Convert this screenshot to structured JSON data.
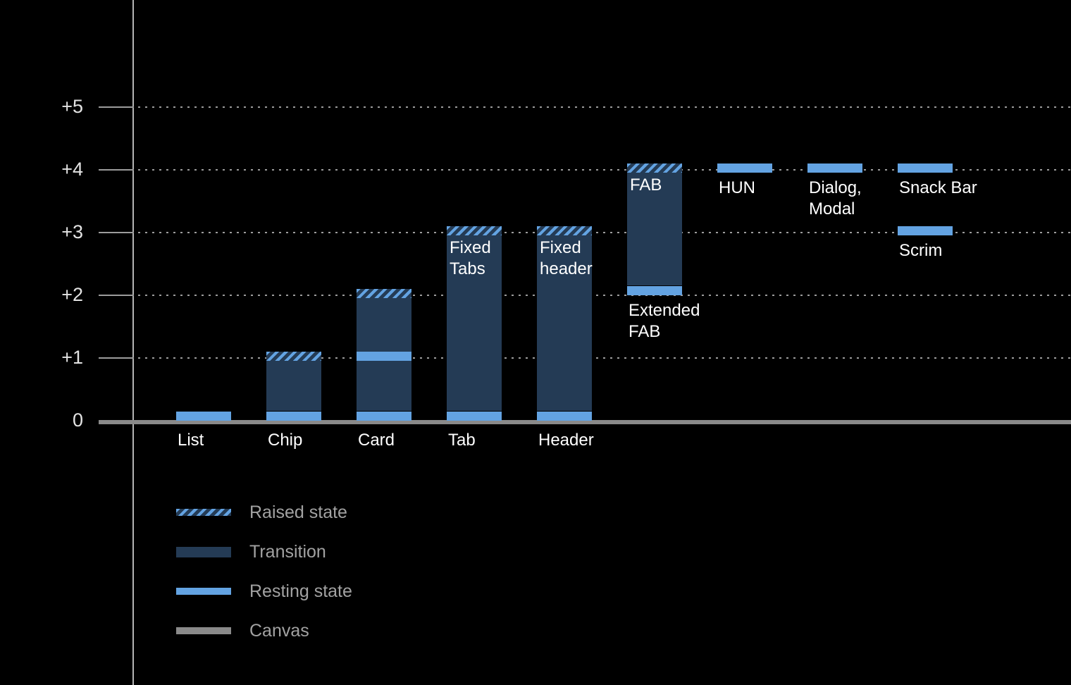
{
  "chart_data": {
    "type": "bar",
    "title": "",
    "xlabel": "",
    "ylabel": "",
    "ylim": [
      0,
      5
    ],
    "yticks": [
      0,
      1,
      2,
      3,
      4,
      5
    ],
    "ytick_labels": [
      "0",
      "+1",
      "+2",
      "+3",
      "+4",
      "+5"
    ],
    "grid": "dotted horizontal lines at each elevation level, thick solid canvas line at 0",
    "colors": {
      "background": "#000000",
      "resting": "#63A3E2",
      "transition": "#243B55",
      "canvas": "#8A8A8A",
      "grid": "#9C9C9C",
      "axis": "#B5B5B5",
      "label": "#FFFFFF",
      "ticklabel": "#E3E3E3",
      "legend_text": "#A2A2A2"
    },
    "bars": [
      {
        "name": "List",
        "column": 0,
        "axis_label": "List",
        "segments": [
          {
            "kind": "resting",
            "from": 0,
            "to": 0.15
          }
        ]
      },
      {
        "name": "Chip",
        "column": 1,
        "axis_label": "Chip",
        "segments": [
          {
            "kind": "resting",
            "from": 0,
            "to": 0.15
          },
          {
            "kind": "transition",
            "from": 0.15,
            "to": 0.95
          },
          {
            "kind": "raised",
            "from": 0.95,
            "to": 1.1
          }
        ]
      },
      {
        "name": "Card",
        "column": 2,
        "axis_label": "Card",
        "segments": [
          {
            "kind": "resting",
            "from": 0,
            "to": 0.15
          },
          {
            "kind": "transition",
            "from": 0.15,
            "to": 0.95
          },
          {
            "kind": "resting",
            "from": 0.95,
            "to": 1.1
          },
          {
            "kind": "transition",
            "from": 1.1,
            "to": 1.95
          },
          {
            "kind": "raised",
            "from": 1.95,
            "to": 2.1
          }
        ]
      },
      {
        "name": "Tab",
        "column": 3,
        "axis_label": "Tab",
        "inner_label": "Fixed\nTabs",
        "segments": [
          {
            "kind": "resting",
            "from": 0,
            "to": 0.15
          },
          {
            "kind": "transition",
            "from": 0.15,
            "to": 2.95
          },
          {
            "kind": "raised",
            "from": 2.95,
            "to": 3.1
          }
        ]
      },
      {
        "name": "Header",
        "column": 4,
        "axis_label": "Header",
        "inner_label": "Fixed\nheader",
        "segments": [
          {
            "kind": "resting",
            "from": 0,
            "to": 0.15
          },
          {
            "kind": "transition",
            "from": 0.15,
            "to": 2.95
          },
          {
            "kind": "raised",
            "from": 2.95,
            "to": 3.1
          }
        ]
      },
      {
        "name": "FAB",
        "column": 5,
        "inner_label": "FAB",
        "below_label": "Extended\nFAB",
        "segments": [
          {
            "kind": "resting",
            "from": 2.0,
            "to": 2.15
          },
          {
            "kind": "transition",
            "from": 2.15,
            "to": 3.95
          },
          {
            "kind": "raised",
            "from": 3.95,
            "to": 4.1
          }
        ]
      },
      {
        "name": "HUN",
        "column": 6,
        "below_label": "HUN",
        "segments": [
          {
            "kind": "resting",
            "from": 3.95,
            "to": 4.1
          }
        ]
      },
      {
        "name": "Dialog, Modal",
        "column": 7,
        "below_label": "Dialog,\nModal",
        "segments": [
          {
            "kind": "resting",
            "from": 3.95,
            "to": 4.1
          }
        ]
      },
      {
        "name": "Snack Bar",
        "column": 8,
        "below_label": "Snack Bar",
        "segments": [
          {
            "kind": "resting",
            "from": 3.95,
            "to": 4.1
          }
        ]
      },
      {
        "name": "Scrim",
        "column": 8,
        "below_label": "Scrim",
        "segments": [
          {
            "kind": "resting",
            "from": 2.95,
            "to": 3.1
          }
        ]
      }
    ]
  },
  "legend": {
    "items": [
      {
        "kind": "raised",
        "label": "Raised state"
      },
      {
        "kind": "transition",
        "label": "Transition"
      },
      {
        "kind": "resting",
        "label": "Resting state"
      },
      {
        "kind": "canvas",
        "label": "Canvas"
      }
    ]
  }
}
